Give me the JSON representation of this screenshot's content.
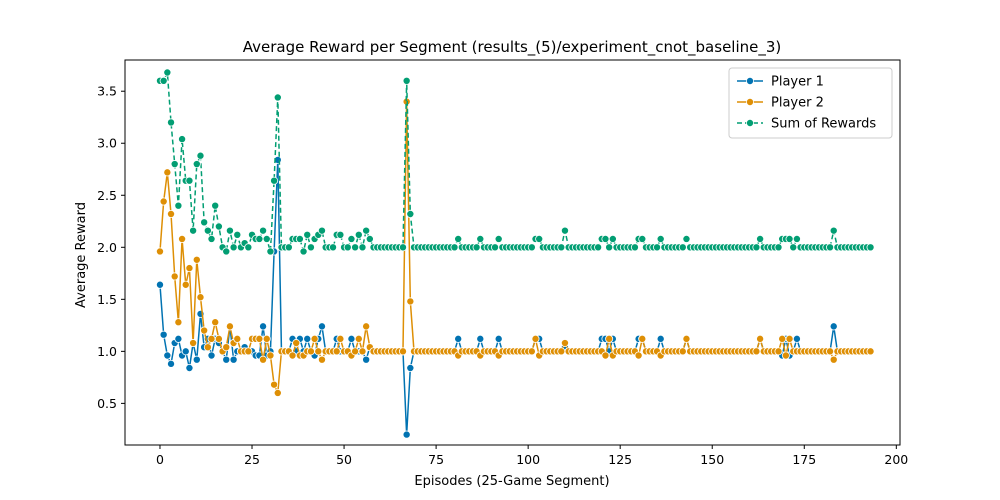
{
  "chart_data": {
    "type": "line",
    "title": "Average Reward per Segment (results_(5)/experiment_cnot_baseline_3)",
    "xlabel": "Episodes (25-Game Segment)",
    "ylabel": "Average Reward",
    "xlim": [
      -9.5,
      201
    ],
    "ylim": [
      0.1,
      3.8
    ],
    "xticks": [
      0,
      25,
      50,
      75,
      100,
      125,
      150,
      175,
      200
    ],
    "yticks": [
      0.5,
      1.0,
      1.5,
      2.0,
      2.5,
      3.0,
      3.5
    ],
    "xtick_labels": [
      "0",
      "25",
      "50",
      "75",
      "100",
      "125",
      "150",
      "175",
      "200"
    ],
    "ytick_labels": [
      "0.5",
      "1.0",
      "1.5",
      "2.0",
      "2.5",
      "3.0",
      "3.5"
    ],
    "grid": false,
    "legend_position": "top-right",
    "series": [
      {
        "name": "Player 1",
        "color": "#0173b2",
        "dashed": false,
        "values": [
          1.64,
          1.16,
          0.96,
          0.88,
          1.08,
          1.12,
          0.96,
          1.0,
          0.84,
          1.08,
          0.92,
          1.36,
          1.04,
          1.12,
          0.96,
          1.12,
          1.08,
          1.0,
          0.92,
          1.24,
          0.92,
          1.0,
          1.0,
          1.04,
          1.0,
          1.0,
          0.96,
          0.96,
          1.24,
          0.96,
          1.0,
          1.96,
          2.84,
          1.0,
          1.0,
          1.0,
          1.12,
          1.0,
          1.12,
          1.0,
          1.12,
          1.0,
          0.96,
          1.12,
          1.24,
          1.0,
          1.0,
          1.0,
          1.12,
          1.0,
          1.0,
          1.0,
          1.12,
          1.0,
          1.0,
          1.0,
          0.92,
          1.04,
          1.0,
          1.0,
          1.0,
          1.0,
          1.0,
          1.0,
          1.0,
          1.0,
          1.0,
          0.2,
          0.84,
          1.0,
          1.0,
          1.0,
          1.0,
          1.0,
          1.0,
          1.0,
          1.0,
          1.0,
          1.0,
          1.0,
          1.0,
          1.12,
          1.0,
          1.0,
          1.0,
          1.0,
          1.0,
          1.12,
          1.0,
          1.0,
          1.0,
          1.0,
          1.12,
          1.0,
          1.0,
          1.0,
          1.0,
          1.0,
          1.0,
          1.0,
          1.0,
          1.0,
          1.12,
          1.12,
          1.0,
          1.0,
          1.0,
          1.0,
          1.0,
          1.0,
          1.04,
          1.0,
          1.0,
          1.0,
          1.0,
          1.0,
          1.0,
          1.0,
          1.0,
          1.0,
          1.12,
          1.12,
          1.0,
          1.12,
          1.0,
          1.0,
          1.0,
          1.0,
          1.0,
          1.0,
          1.12,
          1.12,
          1.0,
          1.0,
          1.0,
          1.0,
          1.12,
          1.0,
          1.0,
          1.0,
          1.0,
          1.0,
          1.0,
          1.12,
          1.0,
          1.0,
          1.0,
          1.0,
          1.0,
          1.0,
          1.0,
          1.0,
          1.0,
          1.0,
          1.0,
          1.0,
          1.0,
          1.0,
          1.0,
          1.0,
          1.0,
          1.0,
          1.0,
          1.12,
          1.0,
          1.0,
          1.0,
          1.0,
          1.0,
          0.96,
          1.12,
          0.96,
          1.0,
          1.12,
          1.0,
          1.0,
          1.0,
          1.0,
          1.0,
          1.0,
          1.0,
          1.0,
          1.0,
          1.24,
          1.0,
          1.0,
          1.0,
          1.0,
          1.0,
          1.0,
          1.0,
          1.0,
          1.0,
          1.0
        ]
      },
      {
        "name": "Player 2",
        "color": "#de8f05",
        "dashed": false,
        "values": [
          1.96,
          2.44,
          2.72,
          2.32,
          1.72,
          1.28,
          2.08,
          1.64,
          1.8,
          1.08,
          1.88,
          1.52,
          1.2,
          1.04,
          1.12,
          1.28,
          1.12,
          1.0,
          1.04,
          1.24,
          1.08,
          1.12,
          1.0,
          1.0,
          1.0,
          1.12,
          1.12,
          1.12,
          0.92,
          1.12,
          0.96,
          0.68,
          0.6,
          1.0,
          1.0,
          1.0,
          0.96,
          1.08,
          0.96,
          0.96,
          1.0,
          1.0,
          1.12,
          1.0,
          0.92,
          1.0,
          1.0,
          1.0,
          1.0,
          1.12,
          1.0,
          1.0,
          0.96,
          1.0,
          1.12,
          1.0,
          1.24,
          1.04,
          1.0,
          1.0,
          1.0,
          1.0,
          1.0,
          1.0,
          1.0,
          1.0,
          1.0,
          3.4,
          1.48,
          1.0,
          1.0,
          1.0,
          1.0,
          1.0,
          1.0,
          1.0,
          1.0,
          1.0,
          1.0,
          1.0,
          1.0,
          0.96,
          1.0,
          1.0,
          1.0,
          1.0,
          1.0,
          0.96,
          1.0,
          1.0,
          1.0,
          1.0,
          0.96,
          1.0,
          1.0,
          1.0,
          1.0,
          1.0,
          1.0,
          1.0,
          1.0,
          1.0,
          1.12,
          0.96,
          1.0,
          1.0,
          1.0,
          1.0,
          1.0,
          1.0,
          1.08,
          1.0,
          1.0,
          1.0,
          1.0,
          1.0,
          1.0,
          1.0,
          1.0,
          1.0,
          1.0,
          0.96,
          1.12,
          0.96,
          1.0,
          1.0,
          1.0,
          1.0,
          1.0,
          1.0,
          0.96,
          1.12,
          1.0,
          1.0,
          1.0,
          1.0,
          0.96,
          1.0,
          1.0,
          1.0,
          1.0,
          1.0,
          1.0,
          1.12,
          1.0,
          1.0,
          1.0,
          1.0,
          1.0,
          1.0,
          1.0,
          1.0,
          1.0,
          1.0,
          1.0,
          1.0,
          1.0,
          1.0,
          1.0,
          1.0,
          1.0,
          1.0,
          1.0,
          1.12,
          1.0,
          1.0,
          1.0,
          1.0,
          1.0,
          1.12,
          0.96,
          1.12,
          1.0,
          1.0,
          1.0,
          1.0,
          1.0,
          1.0,
          1.0,
          1.0,
          1.0,
          1.0,
          1.0,
          0.92,
          1.0,
          1.0,
          1.0,
          1.0,
          1.0,
          1.0,
          1.0,
          1.0,
          1.0,
          1.0
        ]
      },
      {
        "name": "Sum of Rewards",
        "color": "#029e73",
        "dashed": true,
        "values": [
          3.6,
          3.6,
          3.68,
          3.2,
          2.8,
          2.4,
          3.04,
          2.64,
          2.64,
          2.16,
          2.8,
          2.88,
          2.24,
          2.16,
          2.08,
          2.4,
          2.2,
          2.0,
          1.96,
          2.16,
          2.0,
          2.12,
          2.0,
          2.04,
          2.0,
          2.12,
          2.08,
          2.08,
          2.16,
          2.08,
          1.96,
          2.64,
          3.44,
          2.0,
          2.0,
          2.0,
          2.08,
          2.08,
          2.08,
          1.96,
          2.12,
          2.0,
          2.08,
          2.12,
          2.16,
          2.0,
          2.0,
          2.0,
          2.12,
          2.12,
          2.0,
          2.0,
          2.08,
          2.0,
          2.12,
          2.0,
          2.16,
          2.08,
          2.0,
          2.0,
          2.0,
          2.0,
          2.0,
          2.0,
          2.0,
          2.0,
          2.0,
          3.6,
          2.32,
          2.0,
          2.0,
          2.0,
          2.0,
          2.0,
          2.0,
          2.0,
          2.0,
          2.0,
          2.0,
          2.0,
          2.0,
          2.08,
          2.0,
          2.0,
          2.0,
          2.0,
          2.0,
          2.08,
          2.0,
          2.0,
          2.0,
          2.0,
          2.08,
          2.0,
          2.0,
          2.0,
          2.0,
          2.0,
          2.0,
          2.0,
          2.0,
          2.0,
          2.08,
          2.08,
          2.0,
          2.0,
          2.0,
          2.0,
          2.0,
          2.0,
          2.16,
          2.0,
          2.0,
          2.0,
          2.0,
          2.0,
          2.0,
          2.0,
          2.0,
          2.0,
          2.08,
          2.08,
          2.0,
          2.08,
          2.0,
          2.0,
          2.0,
          2.0,
          2.0,
          2.0,
          2.08,
          2.08,
          2.0,
          2.0,
          2.0,
          2.0,
          2.08,
          2.0,
          2.0,
          2.0,
          2.0,
          2.0,
          2.0,
          2.08,
          2.0,
          2.0,
          2.0,
          2.0,
          2.0,
          2.0,
          2.0,
          2.0,
          2.0,
          2.0,
          2.0,
          2.0,
          2.0,
          2.0,
          2.0,
          2.0,
          2.0,
          2.0,
          2.0,
          2.08,
          2.0,
          2.0,
          2.0,
          2.0,
          2.0,
          2.08,
          2.08,
          2.08,
          2.0,
          2.08,
          2.0,
          2.0,
          2.0,
          2.0,
          2.0,
          2.0,
          2.0,
          2.0,
          2.0,
          2.16,
          2.0,
          2.0,
          2.0,
          2.0,
          2.0,
          2.0,
          2.0,
          2.0,
          2.0,
          2.0
        ]
      }
    ]
  }
}
